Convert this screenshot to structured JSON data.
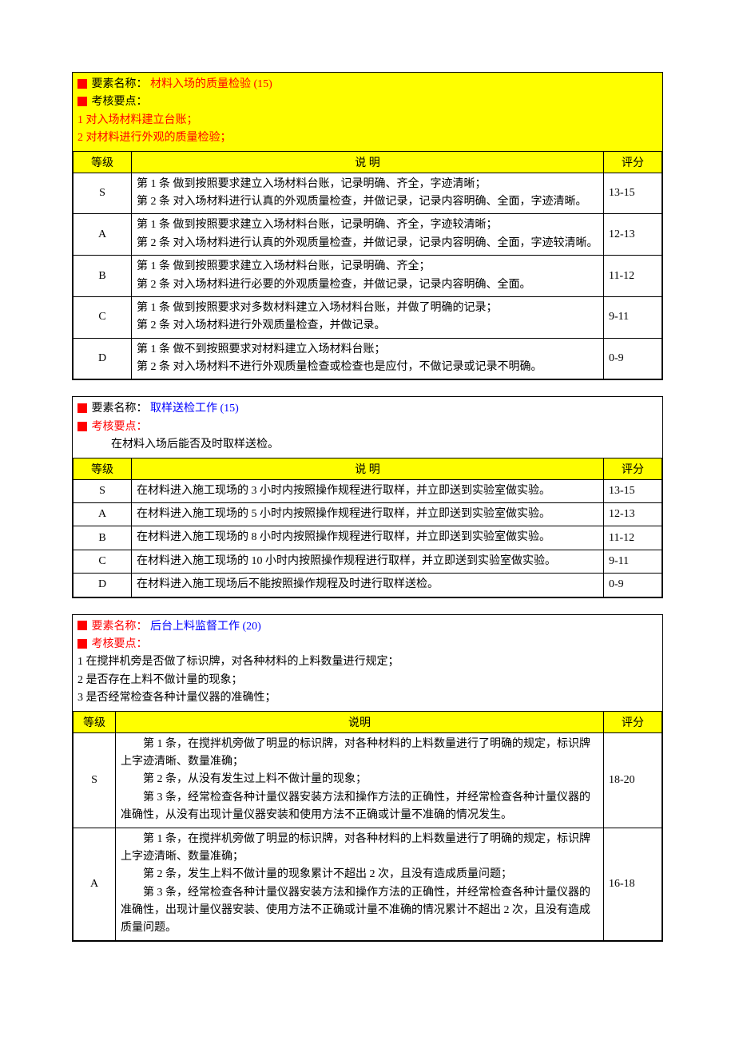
{
  "section1": {
    "titleLabel": "要素名称：",
    "titleValue": "材料入场的质量检验 (15)",
    "pointsLabel": "考核要点：",
    "points": [
      "1 对入场材料建立台账；",
      "2 对材料进行外观的质量检验；"
    ],
    "headers": {
      "grade": "等级",
      "desc": "说   明",
      "score": "评分"
    },
    "rows": [
      {
        "grade": "S",
        "desc1": "第 1 条  做到按照要求建立入场材料台账，记录明确、齐全，字迹清晰；",
        "desc2": "第 2 条  对入场材料进行认真的外观质量检查，并做记录，记录内容明确、全面，字迹清晰。",
        "score": "13-15"
      },
      {
        "grade": "A",
        "desc1": "第 1 条  做到按照要求建立入场材料台账，记录明确、齐全，字迹较清晰；",
        "desc2": "第 2 条  对入场材料进行认真的外观质量检查，并做记录，记录内容明确、全面，字迹较清晰。",
        "score": "12-13"
      },
      {
        "grade": "B",
        "desc1": "第 1 条  做到按照要求建立入场材料台账，记录明确、齐全；",
        "desc2": "第 2 条  对入场材料进行必要的外观质量检查，并做记录，记录内容明确、全面。",
        "score": "11-12"
      },
      {
        "grade": "C",
        "desc1": "第 1 条  做到按照要求对多数材料建立入场材料台账，并做了明确的记录；",
        "desc2": "第 2 条  对入场材料进行外观质量检查，并做记录。",
        "score": "9-11"
      },
      {
        "grade": "D",
        "desc1": "第 1 条  做不到按照要求对材料建立入场材料台账；",
        "desc2": "第 2 条  对入场材料不进行外观质量检查或检查也是应付，不做记录或记录不明确。",
        "score": "0-9"
      }
    ]
  },
  "section2": {
    "titleLabel": "要素名称：",
    "titleValue": "取样送检工作 (15)",
    "pointsLabel": "考核要点：",
    "pointsLine": "在材料入场后能否及时取样送检。",
    "headers": {
      "grade": "等级",
      "desc": "说      明",
      "score": "评分"
    },
    "rows": [
      {
        "grade": "S",
        "desc": "在材料进入施工现场的 3 小时内按照操作规程进行取样，并立即送到实验室做实验。",
        "score": "13-15"
      },
      {
        "grade": "A",
        "desc": "在材料进入施工现场的 5 小时内按照操作规程进行取样，并立即送到实验室做实验。",
        "score": "12-13"
      },
      {
        "grade": "B",
        "desc": "在材料进入施工现场的 8 小时内按照操作规程进行取样，并立即送到实验室做实验。",
        "score": "11-12"
      },
      {
        "grade": "C",
        "desc": "在材料进入施工现场的 10 小时内按照操作规程进行取样，并立即送到实验室做实验。",
        "score": "9-11"
      },
      {
        "grade": "D",
        "desc": "在材料进入施工现场后不能按照操作规程及时进行取样送检。",
        "score": "0-9"
      }
    ]
  },
  "section3": {
    "titleLabel": "要素名称：",
    "titleValue": "后台上料监督工作 (20)",
    "pointsLabel": "考核要点：",
    "points": [
      "1 在搅拌机旁是否做了标识牌，对各种材料的上料数量进行规定；",
      "2 是否存在上料不做计量的现象；",
      "3 是否经常检查各种计量仪器的准确性；"
    ],
    "headers": {
      "grade": "等级",
      "desc": "说明",
      "score": "评分"
    },
    "rows": [
      {
        "grade": "S",
        "paras": [
          "第 1 条，在搅拌机旁做了明显的标识牌，对各种材料的上料数量进行了明确的规定，标识牌上字迹清晰、数量准确；",
          "第 2 条，从没有发生过上料不做计量的现象；",
          "第 3 条，经常检查各种计量仪器安装方法和操作方法的正确性，并经常检查各种计量仪器的准确性，从没有出现计量仪器安装和使用方法不正确或计量不准确的情况发生。"
        ],
        "score": "18-20"
      },
      {
        "grade": "A",
        "paras": [
          "第 1 条，在搅拌机旁做了明显的标识牌，对各种材料的上料数量进行了明确的规定，标识牌上字迹清晰、数量准确；",
          "第 2 条，发生上料不做计量的现象累计不超出 2 次，且没有造成质量问题；",
          "第 3 条，经常检查各种计量仪器安装方法和操作方法的正确性，并经常检查各种计量仪器的准确性，出现计量仪器安装、使用方法不正确或计量不准确的情况累计不超出 2 次，且没有造成质量问题。"
        ],
        "score": "16-18"
      }
    ]
  }
}
